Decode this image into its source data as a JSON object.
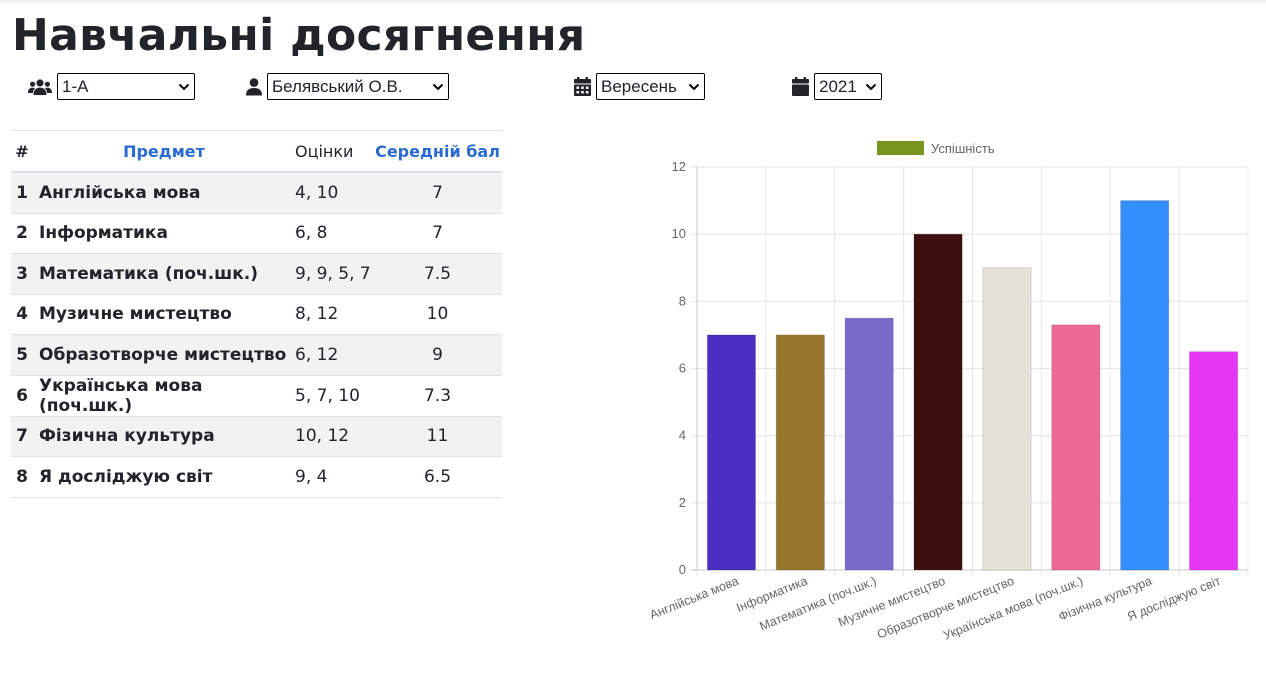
{
  "page": {
    "title": "Навчальні досягнення"
  },
  "filters": {
    "class": {
      "icon": "users-icon",
      "value": "1-А"
    },
    "student": {
      "icon": "user-icon",
      "value": "Белявський О.В."
    },
    "month": {
      "icon": "calendar-icon",
      "value": "Вересень"
    },
    "year": {
      "icon": "calendar-icon",
      "value": "2021"
    }
  },
  "table": {
    "headers": {
      "num": "#",
      "subject": "Предмет",
      "grades": "Оцінки",
      "average": "Середній бал"
    },
    "rows": [
      {
        "num": "1",
        "subject": "Англійська мова",
        "grades": "4, 10",
        "average": "7"
      },
      {
        "num": "2",
        "subject": "Інформатика",
        "grades": "6, 8",
        "average": "7"
      },
      {
        "num": "3",
        "subject": "Математика (поч.шк.)",
        "grades": "9, 9, 5, 7",
        "average": "7.5"
      },
      {
        "num": "4",
        "subject": "Музичне мистецтво",
        "grades": "8, 12",
        "average": "10"
      },
      {
        "num": "5",
        "subject": "Образотворче мистецтво",
        "grades": "6, 12",
        "average": "9"
      },
      {
        "num": "6",
        "subject": "Українська мова (поч.шк.)",
        "grades": "5, 7, 10",
        "average": "7.3"
      },
      {
        "num": "7",
        "subject": "Фізична культура",
        "grades": "10, 12",
        "average": "11"
      },
      {
        "num": "8",
        "subject": "Я досліджую світ",
        "grades": "9, 4",
        "average": "6.5"
      }
    ]
  },
  "colors": {
    "link": "#2a6bd1",
    "stripe": "#f2f2f2"
  },
  "chart_data": {
    "type": "bar",
    "categories": [
      "Англійська мова",
      "Інформатика",
      "Математика (поч.шк.)",
      "Музичне мистецтво",
      "Образотворче мистецтво",
      "Українська мова (поч.шк.)",
      "Фізична культура",
      "Я досліджую світ"
    ],
    "series": [
      {
        "name": "Успішність",
        "values": [
          7,
          7,
          7.5,
          10,
          9,
          7.3,
          11,
          6.5
        ]
      }
    ],
    "bar_colors": [
      "#4b2ec4",
      "#98752c",
      "#776ac9",
      "#3d1010",
      "#e5e2d8",
      "#ec6a96",
      "#348ffd",
      "#e535f5"
    ],
    "legend_color": "#78951f",
    "ylim": [
      0,
      12
    ],
    "yticks": [
      0,
      2,
      4,
      6,
      8,
      10,
      12
    ],
    "grid": true,
    "legend_position": "top",
    "title": "",
    "xlabel": "",
    "ylabel": ""
  }
}
